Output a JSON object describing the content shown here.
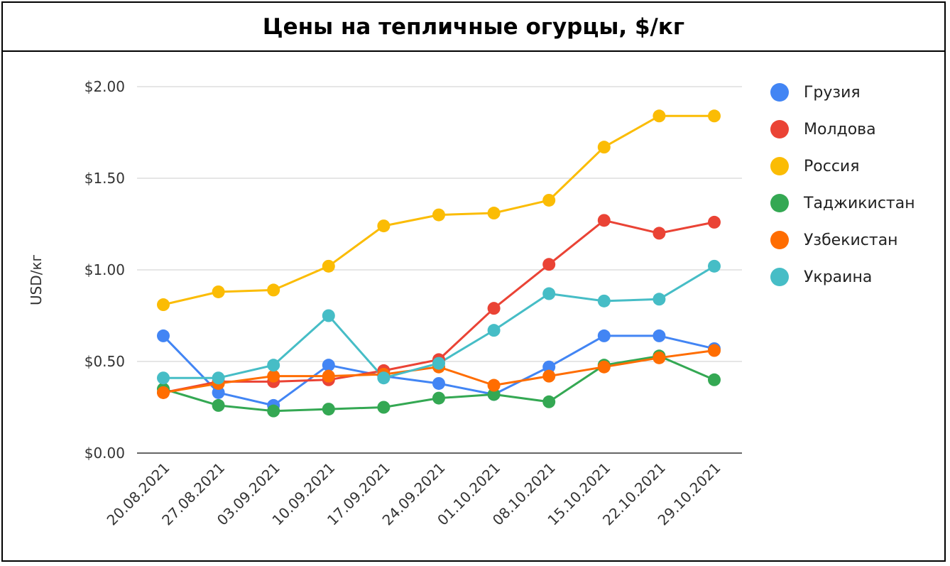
{
  "title": "Цены на тепличные огурцы, $/кг",
  "chart_data": {
    "type": "line",
    "title": "Цены на тепличные огурцы, $/кг",
    "xlabel": "",
    "ylabel": "USD/кг",
    "ylim": [
      0,
      2
    ],
    "yticks": [
      0,
      0.5,
      1,
      1.5,
      2
    ],
    "ytick_labels": [
      "$0.00",
      "$0.50",
      "$1.00",
      "$1.50",
      "$2.00"
    ],
    "grid": true,
    "legend_position": "right",
    "categories": [
      "20.08.2021",
      "27.08.2021",
      "03.09.2021",
      "10.09.2021",
      "17.09.2021",
      "24.09.2021",
      "01.10.2021",
      "08.10.2021",
      "15.10.2021",
      "22.10.2021",
      "29.10.2021"
    ],
    "series": [
      {
        "name": "Грузия",
        "color": "#4285F4",
        "values": [
          0.64,
          0.33,
          0.26,
          0.48,
          0.42,
          0.38,
          0.32,
          0.47,
          0.64,
          0.64,
          0.57
        ]
      },
      {
        "name": "Молдова",
        "color": "#EA4335",
        "values": [
          0.33,
          0.39,
          0.39,
          0.4,
          0.45,
          0.51,
          0.79,
          1.03,
          1.27,
          1.2,
          1.26
        ]
      },
      {
        "name": "Россия",
        "color": "#FBBC04",
        "values": [
          0.81,
          0.88,
          0.89,
          1.02,
          1.24,
          1.3,
          1.31,
          1.38,
          1.67,
          1.84,
          1.84
        ]
      },
      {
        "name": "Таджикистан",
        "color": "#34A853",
        "values": [
          0.35,
          0.26,
          0.23,
          0.24,
          0.25,
          0.3,
          0.32,
          0.28,
          0.48,
          0.53,
          0.4
        ]
      },
      {
        "name": "Узбекистан",
        "color": "#FF6D01",
        "values": [
          0.33,
          0.38,
          0.42,
          0.42,
          0.43,
          0.47,
          0.37,
          0.42,
          0.47,
          0.52,
          0.56
        ]
      },
      {
        "name": "Украина",
        "color": "#46BDC6",
        "values": [
          0.41,
          0.41,
          0.48,
          0.75,
          0.41,
          0.49,
          0.67,
          0.87,
          0.83,
          0.84,
          1.02
        ]
      }
    ]
  }
}
